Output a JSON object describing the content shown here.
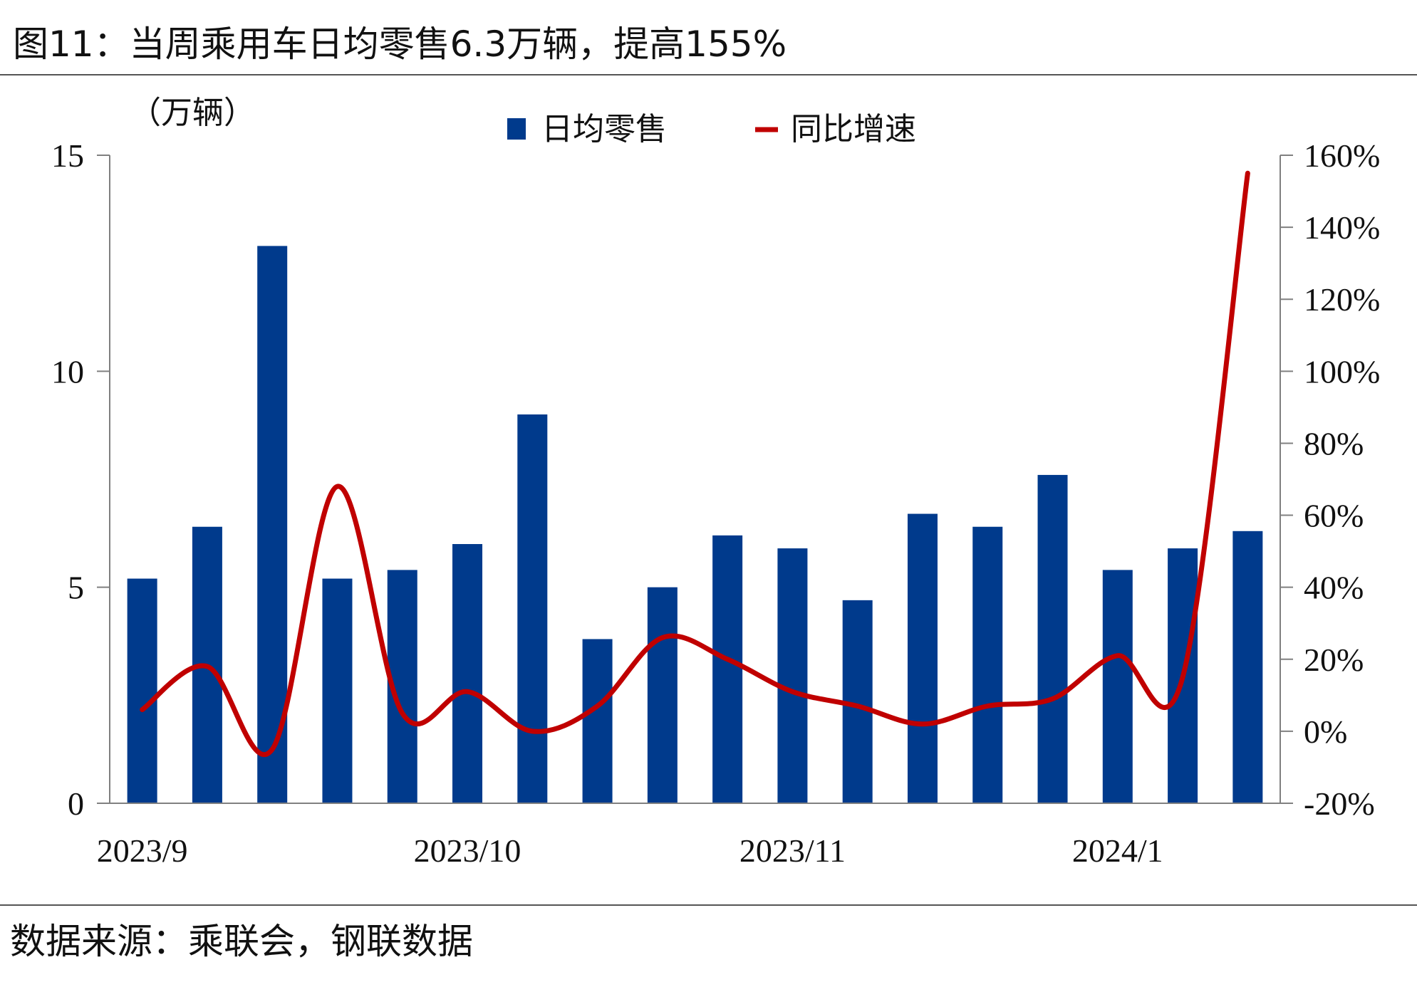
{
  "title": "图11：当周乘用车日均零售6.3万辆，提高155%",
  "source": "数据来源：乘联会，钢联数据",
  "colors": {
    "bar": "#003A8C",
    "line": "#C00000",
    "axis": "#808080"
  },
  "chart_data": {
    "type": "bar+line",
    "y_left_unit": "（万辆）",
    "y_left_ticks": [
      "0",
      "5",
      "10",
      "15"
    ],
    "y_left_range": [
      0,
      15
    ],
    "y_right_ticks": [
      "-20%",
      "0%",
      "20%",
      "40%",
      "60%",
      "80%",
      "100%",
      "120%",
      "140%",
      "160%"
    ],
    "y_right_range": [
      -20,
      160
    ],
    "x_tick_labels": [
      {
        "index": 0,
        "label": "2023/9"
      },
      {
        "index": 5,
        "label": "2023/10"
      },
      {
        "index": 10,
        "label": "2023/11"
      },
      {
        "index": 15,
        "label": "2024/1"
      }
    ],
    "series": [
      {
        "name": "日均零售",
        "type": "bar",
        "axis": "left",
        "values": [
          5.2,
          6.4,
          12.9,
          5.2,
          5.4,
          6.0,
          9.0,
          3.8,
          5.0,
          6.2,
          5.9,
          4.7,
          6.7,
          6.4,
          7.6,
          5.4,
          5.9,
          6.3
        ]
      },
      {
        "name": "同比增速",
        "type": "line",
        "axis": "right",
        "values": [
          6,
          18,
          -5,
          68,
          5,
          11,
          0,
          7,
          26,
          20,
          11,
          7,
          2,
          7,
          9,
          21,
          15,
          155
        ]
      }
    ],
    "legend_position": "top-center",
    "grid": false
  }
}
